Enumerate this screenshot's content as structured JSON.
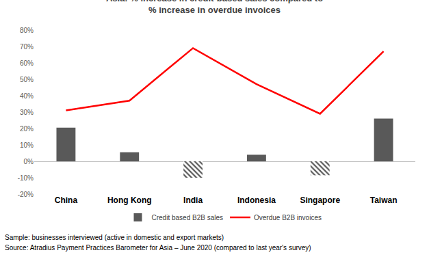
{
  "chart_data": {
    "type": "bar",
    "title": [
      "Asia: % increase in credit-based sales compared to",
      "% increase in overdue invoices"
    ],
    "categories": [
      "China",
      "Hong Kong",
      "India",
      "Indonesia",
      "Singapore",
      "Taiwan"
    ],
    "series": [
      {
        "name": "Credit based B2B sales",
        "type": "bar",
        "color": "#595959",
        "values": [
          20.5,
          5.5,
          -10,
          4,
          -8.5,
          26
        ]
      },
      {
        "name": "Overdue B2B invoices",
        "type": "line",
        "color": "#ff0000",
        "values": [
          31,
          37,
          69,
          47,
          29,
          67
        ]
      }
    ],
    "ylim": [
      -20,
      80
    ],
    "yticks": [
      {
        "value": -20,
        "label": "-20%"
      },
      {
        "value": -10,
        "label": "-10%"
      },
      {
        "value": 0,
        "label": "0%"
      },
      {
        "value": 10,
        "label": "10%"
      },
      {
        "value": 20,
        "label": "20%"
      },
      {
        "value": 30,
        "label": "30%"
      },
      {
        "value": 40,
        "label": "40%"
      },
      {
        "value": 50,
        "label": "50%"
      },
      {
        "value": 60,
        "label": "60%"
      },
      {
        "value": 70,
        "label": "70%"
      },
      {
        "value": 80,
        "label": "80%"
      }
    ],
    "grid": false,
    "legend": "bottom",
    "annotations": [
      "Sample: businesses interviewed (active in domestic and export markets)",
      "Source: Atradius Payment Practices Barometer for Asia – June 2020 (compared to last year's survey)"
    ]
  }
}
